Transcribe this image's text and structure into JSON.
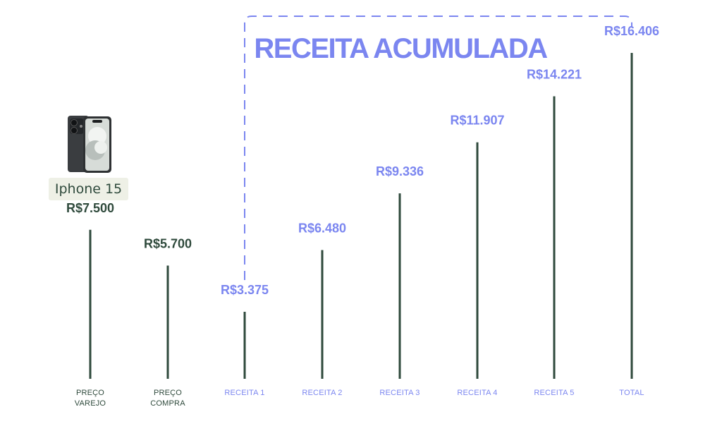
{
  "product": {
    "name": "Iphone 15",
    "image_icon": "smartphone-icon"
  },
  "colors": {
    "green": "#2f4a3c",
    "blue": "#7b86f0"
  },
  "chart_data": {
    "type": "bar",
    "title": "RECEITA ACUMULADA",
    "categories": [
      "PREÇO\nVAREJO",
      "PREÇO\nCOMPRA",
      "RECEITA 1",
      "RECEITA 2",
      "RECEITA 3",
      "RECEITA 4",
      "RECEITA 5",
      "TOTAL"
    ],
    "values": [
      7500,
      5700,
      3375,
      6480,
      9336,
      11907,
      14221,
      16406
    ],
    "value_labels": [
      "R$7.500",
      "R$5.700",
      "R$3.375",
      "R$6.480",
      "R$9.336",
      "R$11.907",
      "R$14.221",
      "R$16.406"
    ],
    "bar_colors": [
      "green",
      "green",
      "green",
      "green",
      "green",
      "green",
      "green",
      "green"
    ],
    "label_colors": [
      "green",
      "green",
      "blue",
      "blue",
      "blue",
      "blue",
      "blue",
      "blue"
    ],
    "bracket_range": [
      "RECEITA 1",
      "TOTAL"
    ],
    "ylim": [
      0,
      16406
    ],
    "grid": false
  }
}
